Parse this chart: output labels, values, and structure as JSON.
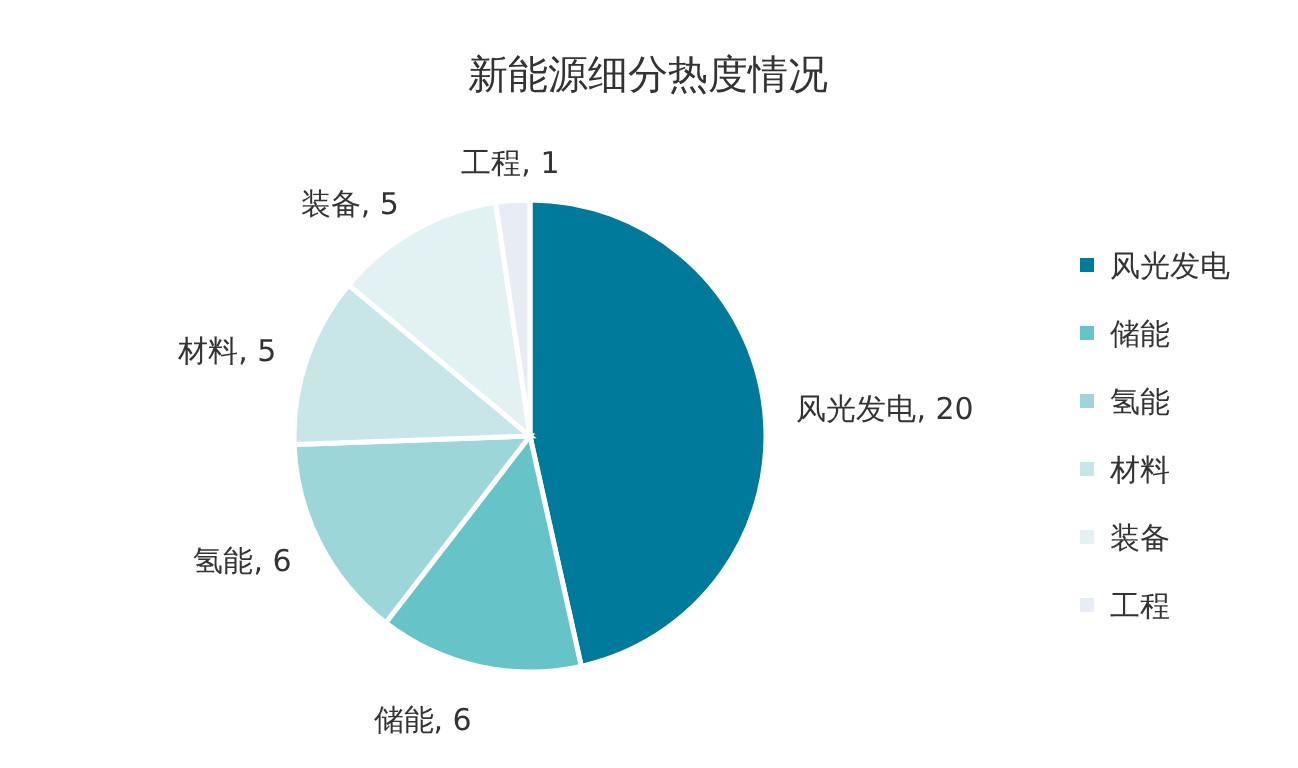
{
  "chart_data": {
    "type": "pie",
    "title": "新能源细分热度情况",
    "categories": [
      "风光发电",
      "储能",
      "氢能",
      "材料",
      "装备",
      "工程"
    ],
    "values": [
      20,
      6,
      6,
      5,
      5,
      1
    ],
    "value_labels": [
      ", 20",
      ", 6",
      ", 6",
      ", 5",
      ", 5",
      ", 1"
    ],
    "colors": [
      "#007a9a",
      "#66c4c8",
      "#9dd6d8",
      "#c8e6e8",
      "#e2f1f1",
      "#e8ecf4"
    ],
    "legend": "right"
  }
}
